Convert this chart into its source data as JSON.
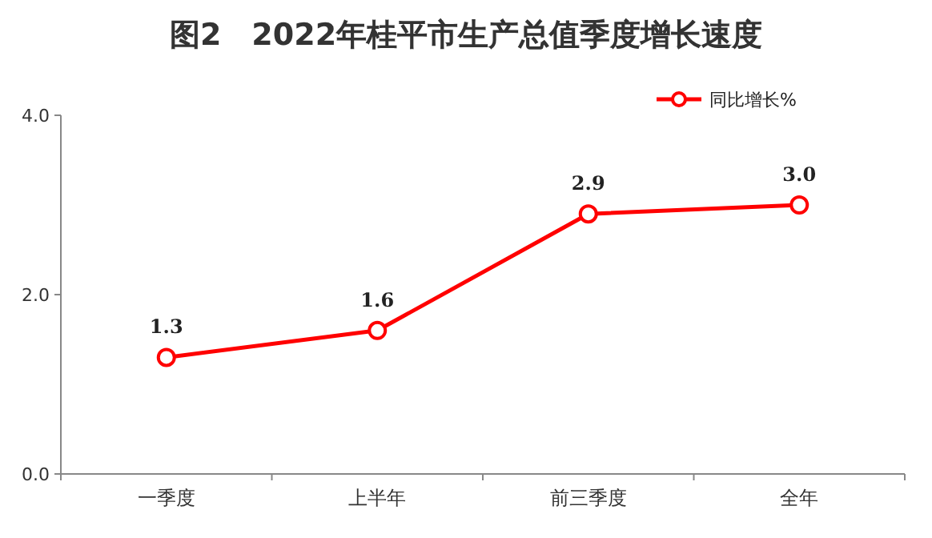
{
  "chart_data": {
    "type": "line",
    "title": "图2　2022年桂平市生产总值季度增长速度",
    "categories": [
      "一季度",
      "上半年",
      "前三季度",
      "全年"
    ],
    "series": [
      {
        "name": "同比增长%",
        "color": "#ff0000",
        "values": [
          1.3,
          1.6,
          2.9,
          3.0
        ],
        "value_labels": [
          "1.3",
          "1.6",
          "2.9",
          "3.0"
        ]
      }
    ],
    "ylim": [
      0,
      4
    ],
    "yticks": [
      {
        "value": 0,
        "label": "0.0"
      },
      {
        "value": 2,
        "label": "2.0"
      },
      {
        "value": 4,
        "label": "4.0"
      }
    ],
    "legend": "top right",
    "marker": "circle"
  }
}
